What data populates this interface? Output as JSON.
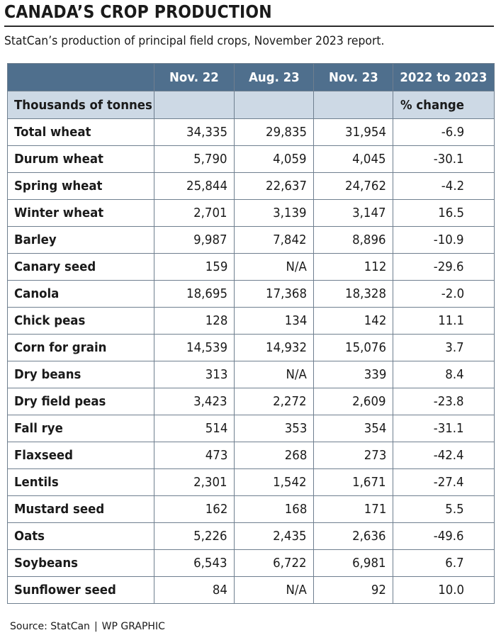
{
  "header": {
    "title": "CANADA’S CROP PRODUCTION",
    "subtitle": "StatCan’s production of principal field crops, November 2023 report."
  },
  "chart_data": {
    "type": "table",
    "title": "CANADA’S CROP PRODUCTION",
    "subtitle": "StatCan’s production of principal field crops, November 2023 report.",
    "columns": [
      "Nov. 22",
      "Aug. 23",
      "Nov. 23",
      "2022 to 2023"
    ],
    "row_header_label": "Thousands of tonnes",
    "change_unit_label": "% change",
    "rows": [
      {
        "crop": "Total wheat",
        "nov22": "34,335",
        "aug23": "29,835",
        "nov23": "31,954",
        "change": "-6.9"
      },
      {
        "crop": "Durum wheat",
        "nov22": "5,790",
        "aug23": "4,059",
        "nov23": "4,045",
        "change": "-30.1"
      },
      {
        "crop": "Spring wheat",
        "nov22": "25,844",
        "aug23": "22,637",
        "nov23": "24,762",
        "change": "-4.2"
      },
      {
        "crop": "Winter wheat",
        "nov22": "2,701",
        "aug23": "3,139",
        "nov23": "3,147",
        "change": "16.5"
      },
      {
        "crop": "Barley",
        "nov22": "9,987",
        "aug23": "7,842",
        "nov23": "8,896",
        "change": "-10.9"
      },
      {
        "crop": "Canary seed",
        "nov22": "159",
        "aug23": "N/A",
        "nov23": "112",
        "change": "-29.6"
      },
      {
        "crop": "Canola",
        "nov22": "18,695",
        "aug23": "17,368",
        "nov23": "18,328",
        "change": "-2.0"
      },
      {
        "crop": "Chick peas",
        "nov22": "128",
        "aug23": "134",
        "nov23": "142",
        "change": "11.1"
      },
      {
        "crop": "Corn for grain",
        "nov22": "14,539",
        "aug23": "14,932",
        "nov23": "15,076",
        "change": "3.7"
      },
      {
        "crop": "Dry beans",
        "nov22": "313",
        "aug23": "N/A",
        "nov23": "339",
        "change": "8.4"
      },
      {
        "crop": "Dry field peas",
        "nov22": "3,423",
        "aug23": "2,272",
        "nov23": "2,609",
        "change": "-23.8"
      },
      {
        "crop": "Fall rye",
        "nov22": "514",
        "aug23": "353",
        "nov23": "354",
        "change": "-31.1"
      },
      {
        "crop": "Flaxseed",
        "nov22": "473",
        "aug23": "268",
        "nov23": "273",
        "change": "-42.4"
      },
      {
        "crop": "Lentils",
        "nov22": "2,301",
        "aug23": "1,542",
        "nov23": "1,671",
        "change": "-27.4"
      },
      {
        "crop": "Mustard seed",
        "nov22": "162",
        "aug23": "168",
        "nov23": "171",
        "change": "5.5"
      },
      {
        "crop": "Oats",
        "nov22": "5,226",
        "aug23": "2,435",
        "nov23": "2,636",
        "change": "-49.6"
      },
      {
        "crop": "Soybeans",
        "nov22": "6,543",
        "aug23": "6,722",
        "nov23": "6,981",
        "change": "6.7"
      },
      {
        "crop": "Sunflower seed",
        "nov22": "84",
        "aug23": "N/A",
        "nov23": "92",
        "change": "10.0"
      }
    ]
  },
  "footer": {
    "source": "Source: StatCan",
    "separator": "|",
    "credit": "WP GRAPHIC"
  },
  "colors": {
    "header_bg": "#4f6f8d",
    "subheader_bg": "#cdd9e5",
    "border": "#6f7f8f"
  }
}
